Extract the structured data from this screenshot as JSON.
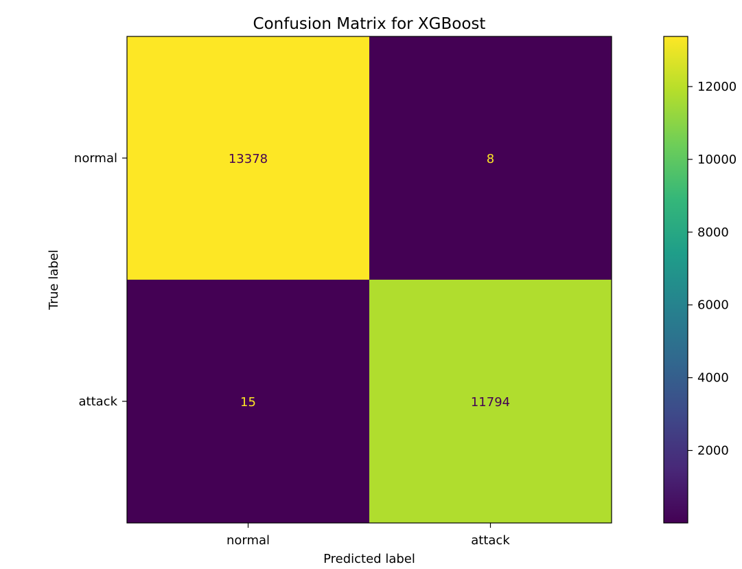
{
  "chart_data": {
    "type": "heatmap",
    "title": "Confusion Matrix for XGBoost",
    "xlabel": "Predicted label",
    "ylabel": "True label",
    "x_categories": [
      "normal",
      "attack"
    ],
    "y_categories": [
      "normal",
      "attack"
    ],
    "values": [
      [
        13378,
        8
      ],
      [
        15,
        11794
      ]
    ],
    "value_labels": [
      [
        "13378",
        "8"
      ],
      [
        "15",
        "11794"
      ]
    ],
    "colormap": "viridis",
    "color_range": [
      8,
      13378
    ],
    "colorbar": {
      "ticks": [
        2000,
        4000,
        6000,
        8000,
        10000,
        12000
      ],
      "tick_labels": [
        "2000",
        "4000",
        "6000",
        "8000",
        "10000",
        "12000"
      ]
    },
    "grid": false,
    "legend": "none"
  }
}
